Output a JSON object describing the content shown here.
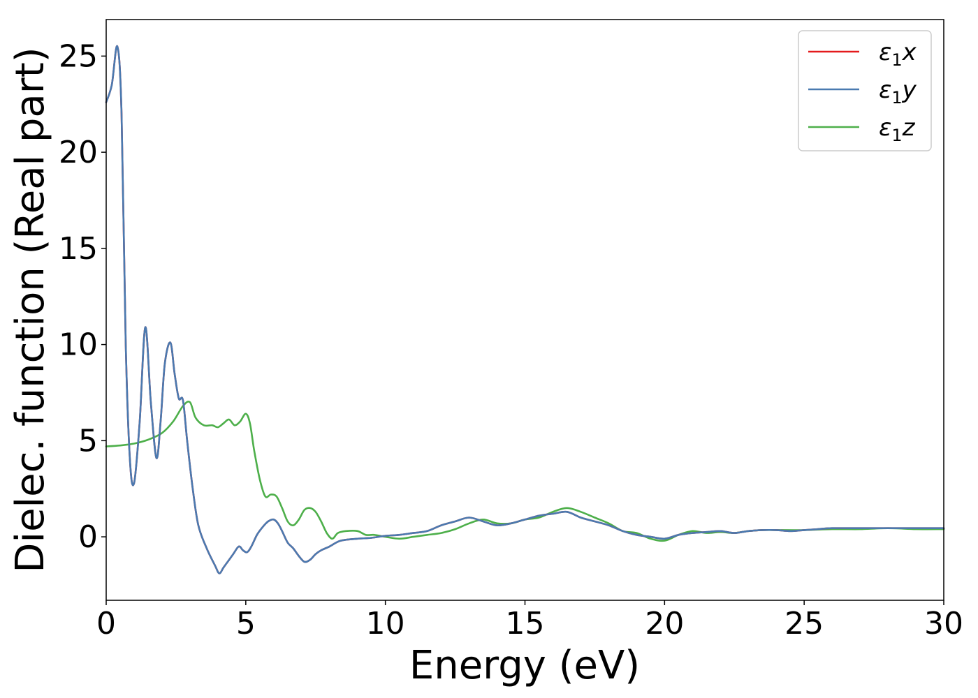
{
  "chart_data": {
    "type": "line",
    "title": "",
    "xlabel": "Energy (eV)",
    "ylabel": "Dielec. function (Real part)",
    "xlim": [
      0,
      30
    ],
    "ylim": [
      -3.3,
      26.9
    ],
    "xticks": [
      0,
      5,
      10,
      15,
      20,
      25,
      30
    ],
    "yticks": [
      0,
      5,
      10,
      15,
      20,
      25
    ],
    "grid": false,
    "legend_position": "top-right",
    "series": [
      {
        "name": "ε₁x",
        "legend_base": "ε",
        "legend_sub": "1",
        "legend_suffix": "x",
        "color": "#e41a1c",
        "x": [
          0,
          0.2,
          0.4,
          0.55,
          0.7,
          0.85,
          1.0,
          1.2,
          1.4,
          1.6,
          1.8,
          1.95,
          2.1,
          2.3,
          2.45,
          2.6,
          2.75,
          2.9,
          3.1,
          3.3,
          3.6,
          3.9,
          4.05,
          4.2,
          4.35,
          4.55,
          4.75,
          4.9,
          5.05,
          5.2,
          5.4,
          5.6,
          5.8,
          6.0,
          6.15,
          6.3,
          6.5,
          6.7,
          6.9,
          7.1,
          7.3,
          7.5,
          7.7,
          8.0,
          8.4,
          9.0,
          9.5,
          10.0,
          10.5,
          11.0,
          11.5,
          12.0,
          12.5,
          13.0,
          13.5,
          14.0,
          14.5,
          15.0,
          15.5,
          16.0,
          16.5,
          17.0,
          17.5,
          18.0,
          18.5,
          19.0,
          19.5,
          20.0,
          20.5,
          21.0,
          21.5,
          22.0,
          22.5,
          23.0,
          23.5,
          24.0,
          24.5,
          25.0,
          25.5,
          26.0,
          27.0,
          28.0,
          29.0,
          30.0
        ],
        "y": [
          22.6,
          23.5,
          25.5,
          22.0,
          10.0,
          4.0,
          2.8,
          6.0,
          10.9,
          7.0,
          4.1,
          6.0,
          9.0,
          10.1,
          8.5,
          7.2,
          7.1,
          5.0,
          2.5,
          0.6,
          -0.6,
          -1.5,
          -1.9,
          -1.6,
          -1.3,
          -0.9,
          -0.5,
          -0.7,
          -0.8,
          -0.5,
          0.1,
          0.5,
          0.8,
          0.9,
          0.7,
          0.3,
          -0.3,
          -0.6,
          -1.0,
          -1.3,
          -1.2,
          -0.9,
          -0.7,
          -0.5,
          -0.2,
          -0.1,
          -0.05,
          0.05,
          0.1,
          0.2,
          0.3,
          0.6,
          0.8,
          1.0,
          0.8,
          0.6,
          0.7,
          0.9,
          1.1,
          1.2,
          1.3,
          1.0,
          0.8,
          0.6,
          0.3,
          0.1,
          0.0,
          -0.1,
          0.1,
          0.2,
          0.25,
          0.3,
          0.2,
          0.3,
          0.35,
          0.35,
          0.3,
          0.35,
          0.4,
          0.45,
          0.45,
          0.45,
          0.45,
          0.45
        ]
      },
      {
        "name": "ε₁y",
        "legend_base": "ε",
        "legend_sub": "1",
        "legend_suffix": "y",
        "color": "#4a7ab0",
        "x": [
          0,
          0.2,
          0.4,
          0.55,
          0.7,
          0.85,
          1.0,
          1.2,
          1.4,
          1.6,
          1.8,
          1.95,
          2.1,
          2.3,
          2.45,
          2.6,
          2.75,
          2.9,
          3.1,
          3.3,
          3.6,
          3.9,
          4.05,
          4.2,
          4.35,
          4.55,
          4.75,
          4.9,
          5.05,
          5.2,
          5.4,
          5.6,
          5.8,
          6.0,
          6.15,
          6.3,
          6.5,
          6.7,
          6.9,
          7.1,
          7.3,
          7.5,
          7.7,
          8.0,
          8.4,
          9.0,
          9.5,
          10.0,
          10.5,
          11.0,
          11.5,
          12.0,
          12.5,
          13.0,
          13.5,
          14.0,
          14.5,
          15.0,
          15.5,
          16.0,
          16.5,
          17.0,
          17.5,
          18.0,
          18.5,
          19.0,
          19.5,
          20.0,
          20.5,
          21.0,
          21.5,
          22.0,
          22.5,
          23.0,
          23.5,
          24.0,
          24.5,
          25.0,
          25.5,
          26.0,
          27.0,
          28.0,
          29.0,
          30.0
        ],
        "y": [
          22.6,
          23.5,
          25.5,
          22.0,
          10.0,
          4.0,
          2.8,
          6.0,
          10.9,
          7.0,
          4.1,
          6.0,
          9.0,
          10.1,
          8.5,
          7.2,
          7.1,
          5.0,
          2.5,
          0.6,
          -0.6,
          -1.5,
          -1.9,
          -1.6,
          -1.3,
          -0.9,
          -0.5,
          -0.7,
          -0.8,
          -0.5,
          0.1,
          0.5,
          0.8,
          0.9,
          0.7,
          0.3,
          -0.3,
          -0.6,
          -1.0,
          -1.3,
          -1.2,
          -0.9,
          -0.7,
          -0.5,
          -0.2,
          -0.1,
          -0.05,
          0.05,
          0.1,
          0.2,
          0.3,
          0.6,
          0.8,
          1.0,
          0.8,
          0.6,
          0.7,
          0.9,
          1.1,
          1.2,
          1.3,
          1.0,
          0.8,
          0.6,
          0.3,
          0.1,
          0.0,
          -0.1,
          0.1,
          0.2,
          0.25,
          0.3,
          0.2,
          0.3,
          0.35,
          0.35,
          0.3,
          0.35,
          0.4,
          0.45,
          0.45,
          0.45,
          0.45,
          0.45
        ]
      },
      {
        "name": "ε₁z",
        "legend_base": "ε",
        "legend_sub": "1",
        "legend_suffix": "z",
        "color": "#4daf4a",
        "x": [
          0,
          0.5,
          1.0,
          1.5,
          2.0,
          2.4,
          2.75,
          3.0,
          3.2,
          3.5,
          3.8,
          4.0,
          4.2,
          4.4,
          4.6,
          4.8,
          5.0,
          5.15,
          5.3,
          5.5,
          5.7,
          5.9,
          6.1,
          6.3,
          6.5,
          6.7,
          6.9,
          7.1,
          7.3,
          7.5,
          7.7,
          7.9,
          8.1,
          8.3,
          8.6,
          9.0,
          9.3,
          9.6,
          10.0,
          10.5,
          11.0,
          11.5,
          12.0,
          12.5,
          13.0,
          13.5,
          14.0,
          14.5,
          15.0,
          15.5,
          16.0,
          16.5,
          17.0,
          17.5,
          18.0,
          18.5,
          19.0,
          19.5,
          20.0,
          20.5,
          21.0,
          21.5,
          22.0,
          22.5,
          23.0,
          23.5,
          24.0,
          25.0,
          26.0,
          27.0,
          28.0,
          29.0,
          30.0
        ],
        "y": [
          4.7,
          4.75,
          4.85,
          5.05,
          5.4,
          6.0,
          6.8,
          7.0,
          6.2,
          5.8,
          5.8,
          5.7,
          5.9,
          6.1,
          5.8,
          6.0,
          6.4,
          5.9,
          4.5,
          3.0,
          2.1,
          2.2,
          2.1,
          1.5,
          0.8,
          0.6,
          0.9,
          1.4,
          1.5,
          1.3,
          0.8,
          0.2,
          -0.1,
          0.2,
          0.3,
          0.3,
          0.1,
          0.1,
          0.0,
          -0.1,
          0.0,
          0.1,
          0.2,
          0.4,
          0.7,
          0.9,
          0.7,
          0.7,
          0.9,
          1.0,
          1.3,
          1.5,
          1.3,
          1.0,
          0.7,
          0.3,
          0.2,
          -0.1,
          -0.2,
          0.1,
          0.3,
          0.2,
          0.25,
          0.2,
          0.3,
          0.35,
          0.35,
          0.35,
          0.4,
          0.4,
          0.45,
          0.4,
          0.4
        ]
      }
    ]
  }
}
